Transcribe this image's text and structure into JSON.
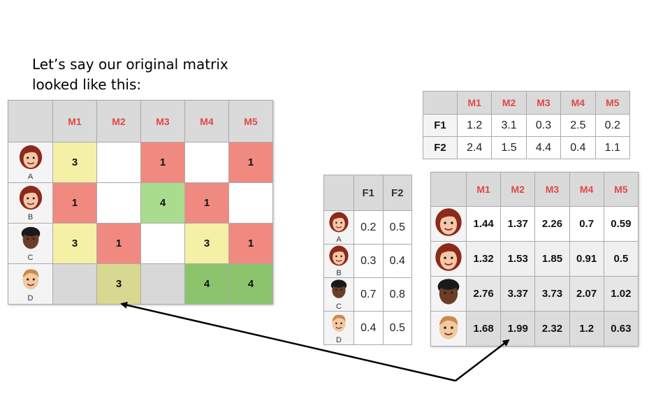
{
  "caption": {
    "line1": "Let’s say our original matrix",
    "line2": "looked like this:"
  },
  "colors": {
    "yellow": "#f4f0a6",
    "red": "#f08a80",
    "green": "#a9dc8c",
    "green_dark": "#8cc46e",
    "header_red": "#e04848",
    "header_gray": "#dadada"
  },
  "original_matrix": {
    "columns": [
      "M1",
      "M2",
      "M3",
      "M4",
      "M5"
    ],
    "rows": [
      {
        "user": "A",
        "avatar": "woman-face-icon",
        "cells": [
          {
            "v": "3",
            "c": "yellow"
          },
          {
            "v": "",
            "c": "white"
          },
          {
            "v": "1",
            "c": "red"
          },
          {
            "v": "",
            "c": "white"
          },
          {
            "v": "1",
            "c": "red"
          }
        ]
      },
      {
        "user": "B",
        "avatar": "woman-face-icon",
        "cells": [
          {
            "v": "1",
            "c": "red"
          },
          {
            "v": "",
            "c": "white"
          },
          {
            "v": "4",
            "c": "green"
          },
          {
            "v": "1",
            "c": "red"
          },
          {
            "v": "",
            "c": "white"
          }
        ]
      },
      {
        "user": "C",
        "avatar": "man-face-icon",
        "cells": [
          {
            "v": "3",
            "c": "yellow"
          },
          {
            "v": "1",
            "c": "red"
          },
          {
            "v": "",
            "c": "white"
          },
          {
            "v": "3",
            "c": "yellow"
          },
          {
            "v": "1",
            "c": "red"
          }
        ]
      },
      {
        "user": "D",
        "avatar": "boy-face-icon",
        "cells": [
          {
            "v": "",
            "c": "white"
          },
          {
            "v": "3",
            "c": "yellow"
          },
          {
            "v": "",
            "c": "white"
          },
          {
            "v": "4",
            "c": "green"
          },
          {
            "v": "4",
            "c": "green"
          }
        ]
      }
    ]
  },
  "movie_factors": {
    "columns": [
      "M1",
      "M2",
      "M3",
      "M4",
      "M5"
    ],
    "rows": [
      {
        "label": "F1",
        "values": [
          "1.2",
          "3.1",
          "0.3",
          "2.5",
          "0.2"
        ]
      },
      {
        "label": "F2",
        "values": [
          "2.4",
          "1.5",
          "4.4",
          "0.4",
          "1.1"
        ]
      }
    ]
  },
  "user_factors": {
    "columns": [
      "F1",
      "F2"
    ],
    "rows": [
      {
        "user": "A",
        "avatar": "woman-face-icon",
        "values": [
          "0.2",
          "0.5"
        ]
      },
      {
        "user": "B",
        "avatar": "woman-face-icon",
        "values": [
          "0.3",
          "0.4"
        ]
      },
      {
        "user": "C",
        "avatar": "man-face-icon",
        "values": [
          "0.7",
          "0.8"
        ]
      },
      {
        "user": "D",
        "avatar": "boy-face-icon",
        "values": [
          "0.4",
          "0.5"
        ]
      }
    ]
  },
  "predicted_matrix": {
    "columns": [
      "M1",
      "M2",
      "M3",
      "M4",
      "M5"
    ],
    "rows": [
      {
        "avatar": "woman-face-icon",
        "values": [
          "1.44",
          "1.37",
          "2.26",
          "0.7",
          "0.59"
        ]
      },
      {
        "avatar": "woman-face-icon",
        "values": [
          "1.32",
          "1.53",
          "1.85",
          "0.91",
          "0.5"
        ]
      },
      {
        "avatar": "man-face-icon",
        "values": [
          "2.76",
          "3.37",
          "3.73",
          "2.07",
          "1.02"
        ]
      },
      {
        "avatar": "boy-face-icon",
        "values": [
          "1.68",
          "1.99",
          "2.32",
          "1.2",
          "0.63"
        ]
      }
    ]
  }
}
